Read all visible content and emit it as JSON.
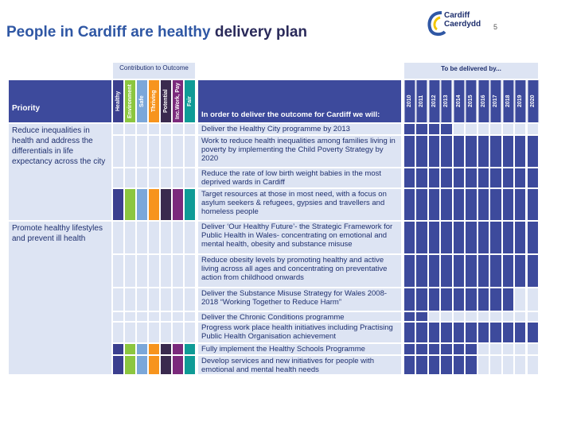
{
  "header": {
    "title_highlight": "People in Cardiff are healthy",
    "title_rest": "delivery plan",
    "page_number": "5",
    "logo_line1": "Cardiff",
    "logo_line2": "Caerdydd"
  },
  "table": {
    "contribution_header": "Contribution to Outcome",
    "delivery_header": "To be delivered by...",
    "priority_header": "Priority",
    "action_header": "In order to deliver the outcome for Cardiff we will:",
    "contributions": [
      {
        "label": "Healthy",
        "color": "#3b3f8f"
      },
      {
        "label": "Environment",
        "color": "#8cc63f"
      },
      {
        "label": "Safe",
        "color": "#7ba7d9"
      },
      {
        "label": "Thriving",
        "color": "#f7941d"
      },
      {
        "label": "Potential",
        "color": "#3a2a4e"
      },
      {
        "label": "Inc.Work, Pay",
        "color": "#7b2a7c"
      },
      {
        "label": "Fair",
        "color": "#0f9b96"
      }
    ],
    "years": [
      "2010",
      "2011",
      "2012",
      "2013",
      "2014",
      "2015",
      "2016",
      "2017",
      "2018",
      "2019",
      "2020"
    ],
    "delivery_color": "#3d4a9c",
    "priorities": [
      {
        "text": "Reduce inequalities in health and address the differentials in life expectancy across the city",
        "rows": [
          {
            "action": "Deliver the Healthy City programme by 2013",
            "contributes": [
              false,
              false,
              false,
              false,
              false,
              false,
              false
            ],
            "delivered": [
              true,
              true,
              true,
              true,
              false,
              false,
              false,
              false,
              false,
              false,
              false
            ]
          },
          {
            "action": "Work to reduce health inequalities among families living in poverty by implementing the Child Poverty Strategy by 2020",
            "contributes": [
              false,
              false,
              false,
              false,
              false,
              false,
              false
            ],
            "delivered": [
              true,
              true,
              true,
              true,
              true,
              true,
              true,
              true,
              true,
              true,
              true
            ]
          },
          {
            "action": "Reduce the rate of low birth weight babies in the most deprived wards in Cardiff",
            "contributes": [
              false,
              false,
              false,
              false,
              false,
              false,
              false
            ],
            "delivered": [
              true,
              true,
              true,
              true,
              true,
              true,
              true,
              true,
              true,
              true,
              true
            ]
          },
          {
            "action": "Target resources at those in most need, with a focus on asylum seekers & refugees, gypsies and travellers and homeless people",
            "contributes": [
              true,
              true,
              true,
              true,
              true,
              true,
              true
            ],
            "delivered": [
              true,
              true,
              true,
              true,
              true,
              true,
              true,
              true,
              true,
              true,
              true
            ]
          }
        ]
      },
      {
        "text": "Promote healthy lifestyles and prevent ill health",
        "rows": [
          {
            "action": "Deliver ‘Our Healthy Future’- the Strategic Framework for Public Health in Wales- concentrating on emotional and mental health, obesity and substance misuse",
            "contributes": [
              false,
              false,
              false,
              false,
              false,
              false,
              false
            ],
            "delivered": [
              true,
              true,
              true,
              true,
              true,
              true,
              true,
              true,
              true,
              true,
              true
            ]
          },
          {
            "action": "Reduce obesity levels by promoting healthy and active living across all ages and concentrating on preventative action from childhood onwards",
            "contributes": [
              false,
              false,
              false,
              false,
              false,
              false,
              false
            ],
            "delivered": [
              true,
              true,
              true,
              true,
              true,
              true,
              true,
              true,
              true,
              true,
              true
            ]
          },
          {
            "action": "Deliver the Substance Misuse Strategy for Wales 2008-2018 “Working Together to Reduce Harm”",
            "contributes": [
              false,
              false,
              false,
              false,
              false,
              false,
              false
            ],
            "delivered": [
              true,
              true,
              true,
              true,
              true,
              true,
              true,
              true,
              true,
              false,
              false
            ]
          },
          {
            "action": "Deliver the Chronic Conditions programme",
            "contributes": [
              false,
              false,
              false,
              false,
              false,
              false,
              false
            ],
            "delivered": [
              true,
              true,
              false,
              false,
              false,
              false,
              false,
              false,
              false,
              false,
              false
            ]
          },
          {
            "action": "Progress work place health initiatives including Practising Public Health Organisation achievement",
            "contributes": [
              false,
              false,
              false,
              false,
              false,
              false,
              false
            ],
            "delivered": [
              true,
              true,
              true,
              true,
              true,
              true,
              true,
              true,
              true,
              true,
              true
            ]
          },
          {
            "action": "Fully implement the Healthy Schools Programme",
            "contributes": [
              true,
              true,
              true,
              true,
              true,
              true,
              true
            ],
            "delivered": [
              true,
              true,
              true,
              true,
              true,
              true,
              false,
              false,
              false,
              false,
              false
            ]
          },
          {
            "action": "Develop services and new initiatives for people with emotional and mental health needs",
            "contributes": [
              true,
              true,
              true,
              true,
              true,
              true,
              true
            ],
            "delivered": [
              true,
              true,
              true,
              true,
              true,
              true,
              false,
              false,
              false,
              false,
              false
            ]
          }
        ]
      }
    ]
  }
}
